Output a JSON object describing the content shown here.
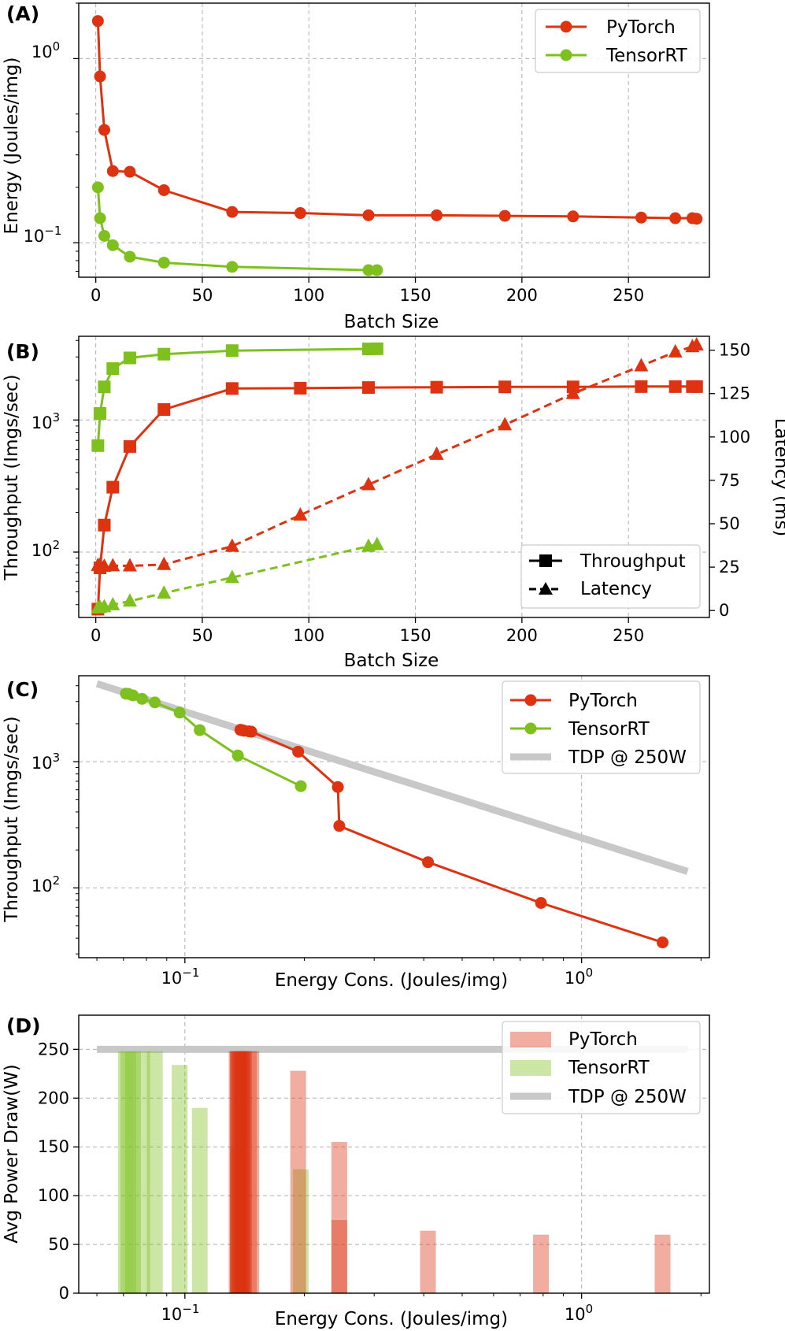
{
  "colors": {
    "pytorch": "#dd3311",
    "tensorrt": "#7ec11e",
    "tdp": "#c8c8c8"
  },
  "panels": {
    "A": {
      "label": "(A)",
      "xlabel": "Batch Size",
      "ylabel": "Energy (Joules/img)",
      "xticks": [
        "0",
        "50",
        "100",
        "150",
        "200",
        "250"
      ],
      "legend": [
        "PyTorch",
        "TensorRT"
      ]
    },
    "B": {
      "label": "(B)",
      "xlabel": "Batch Size",
      "ylabel": "Throughput (Imgs/sec)",
      "y2label": "Latency (ms)",
      "xticks": [
        "0",
        "50",
        "100",
        "150",
        "200",
        "250"
      ],
      "y2ticks": [
        "0",
        "25",
        "50",
        "75",
        "100",
        "125",
        "150"
      ],
      "legend": [
        "Throughput",
        "Latency"
      ]
    },
    "C": {
      "label": "(C)",
      "xlabel": "Energy Cons. (Joules/img)",
      "ylabel": "Throughput (Imgs/sec)",
      "legend": [
        "PyTorch",
        "TensorRT",
        "TDP @ 250W"
      ]
    },
    "D": {
      "label": "(D)",
      "xlabel": "Energy Cons. (Joules/img)",
      "ylabel": "Avg Power Draw(W)",
      "yticks": [
        "0",
        "50",
        "100",
        "150",
        "200",
        "250"
      ],
      "legend": [
        "PyTorch",
        "TensorRT",
        "TDP @ 250W"
      ]
    }
  },
  "chart_data": [
    {
      "id": "A",
      "type": "line",
      "title": "(A)",
      "xlabel": "Batch Size",
      "ylabel": "Energy (Joules/img)",
      "xlim": [
        -8,
        288
      ],
      "ylim": [
        0.065,
        2.0
      ],
      "yscale": "log",
      "legend_position": "top-right",
      "series": [
        {
          "name": "PyTorch",
          "x": [
            1,
            2,
            4,
            8,
            16,
            32,
            64,
            96,
            128,
            160,
            192,
            224,
            256,
            272,
            280,
            282
          ],
          "y": [
            1.6,
            0.8,
            0.41,
            0.245,
            0.243,
            0.193,
            0.147,
            0.145,
            0.141,
            0.141,
            0.14,
            0.139,
            0.137,
            0.136,
            0.136,
            0.135
          ]
        },
        {
          "name": "TensorRT",
          "x": [
            1,
            2,
            4,
            8,
            16,
            32,
            64,
            128,
            132
          ],
          "y": [
            0.2,
            0.136,
            0.109,
            0.097,
            0.084,
            0.078,
            0.074,
            0.071,
            0.071
          ]
        }
      ]
    },
    {
      "id": "B",
      "type": "line",
      "title": "(B)",
      "xlabel": "Batch Size",
      "ylabel": "Throughput (Imgs/sec)",
      "y2label": "Latency (ms)",
      "xlim": [
        -8,
        288
      ],
      "ylim": [
        32,
        4300
      ],
      "yscale": "log",
      "y2lim": [
        -4,
        158
      ],
      "legend_position": "bottom-right",
      "series": [
        {
          "name": "PyTorch Throughput",
          "axis": "left",
          "style": "solid",
          "marker": "square",
          "x": [
            1,
            2,
            4,
            8,
            16,
            32,
            64,
            96,
            128,
            160,
            192,
            224,
            256,
            272,
            280,
            282
          ],
          "y": [
            37,
            76,
            160,
            310,
            630,
            1200,
            1730,
            1740,
            1760,
            1770,
            1780,
            1780,
            1790,
            1790,
            1790,
            1790
          ]
        },
        {
          "name": "TensorRT Throughput",
          "axis": "left",
          "style": "solid",
          "marker": "square",
          "x": [
            1,
            2,
            4,
            8,
            16,
            32,
            64,
            128,
            132
          ],
          "y": [
            640,
            1120,
            1780,
            2450,
            2950,
            3150,
            3350,
            3450,
            3460
          ]
        },
        {
          "name": "PyTorch Latency",
          "axis": "right",
          "style": "dashed",
          "marker": "triangle",
          "x": [
            1,
            2,
            4,
            8,
            16,
            32,
            64,
            96,
            128,
            160,
            192,
            224,
            256,
            272,
            280,
            282
          ],
          "y": [
            26,
            26.3,
            25.5,
            25.8,
            25.7,
            26.5,
            37,
            55,
            72.5,
            90,
            107,
            125,
            141,
            149,
            152,
            153
          ]
        },
        {
          "name": "TensorRT Latency",
          "axis": "right",
          "style": "dashed",
          "marker": "triangle",
          "x": [
            1,
            2,
            4,
            8,
            16,
            32,
            64,
            128,
            132
          ],
          "y": [
            1.5,
            1.8,
            2.2,
            3.3,
            5.4,
            10,
            19,
            37,
            38
          ]
        }
      ]
    },
    {
      "id": "C",
      "type": "line",
      "title": "(C)",
      "xlabel": "Energy Cons. (Joules/img)",
      "ylabel": "Throughput (Imgs/sec)",
      "xscale": "log",
      "yscale": "log",
      "xlim": [
        0.054,
        2.1
      ],
      "ylim": [
        28,
        4800
      ],
      "legend_position": "top-right",
      "series": [
        {
          "name": "PyTorch",
          "x": [
            1.6,
            0.79,
            0.41,
            0.245,
            0.243,
            0.193,
            0.147,
            0.145,
            0.141,
            0.14,
            0.139,
            0.138
          ],
          "y": [
            37,
            76,
            160,
            310,
            630,
            1200,
            1730,
            1740,
            1760,
            1770,
            1780,
            1790
          ]
        },
        {
          "name": "TensorRT",
          "x": [
            0.196,
            0.136,
            0.109,
            0.097,
            0.084,
            0.078,
            0.074,
            0.072,
            0.071
          ],
          "y": [
            640,
            1120,
            1780,
            2450,
            2950,
            3150,
            3350,
            3450,
            3460
          ]
        },
        {
          "name": "TDP @ 250W",
          "x": [
            0.06,
            1.85
          ],
          "y": [
            4150,
            135
          ]
        }
      ]
    },
    {
      "id": "D",
      "type": "bar",
      "title": "(D)",
      "xlabel": "Energy Cons. (Joules/img)",
      "ylabel": "Avg Power Draw(W)",
      "xscale": "log",
      "xlim": [
        0.054,
        2.1
      ],
      "ylim": [
        0,
        285
      ],
      "legend_position": "top-right",
      "series": [
        {
          "name": "PyTorch",
          "x": [
            1.6,
            0.79,
            0.41,
            0.245,
            0.245,
            0.193,
            0.147,
            0.145,
            0.141,
            0.14,
            0.139,
            0.138,
            0.137,
            0.136,
            0.136,
            0.135
          ],
          "y": [
            60,
            60,
            64,
            75,
            155,
            228,
            248,
            248,
            248,
            248,
            248,
            248,
            248,
            248,
            248,
            248
          ]
        },
        {
          "name": "TensorRT",
          "x": [
            0.196,
            0.136,
            0.109,
            0.097,
            0.084,
            0.078,
            0.074,
            0.072,
            0.071
          ],
          "y": [
            127,
            150,
            190,
            234,
            248,
            248,
            248,
            248,
            248
          ]
        },
        {
          "name": "TDP @ 250W",
          "x": [
            0.06,
            1.85
          ],
          "y": [
            250,
            250
          ]
        }
      ]
    }
  ]
}
